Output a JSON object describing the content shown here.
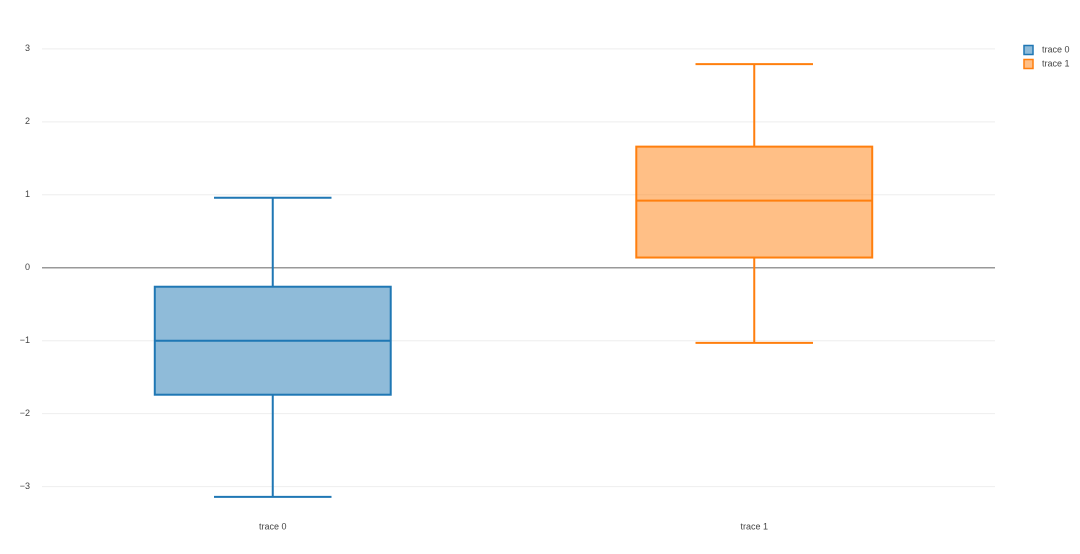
{
  "chart_data": {
    "type": "box",
    "categories": [
      "trace 0",
      "trace 1"
    ],
    "series": [
      {
        "name": "trace 0",
        "color": "#1f77b4",
        "lower": -3.14,
        "q1": -1.74,
        "median": -1.0,
        "q3": -0.26,
        "upper": 0.96
      },
      {
        "name": "trace 1",
        "color": "#ff7f0e",
        "lower": -1.03,
        "q1": 0.14,
        "median": 0.92,
        "q3": 1.66,
        "upper": 2.79
      }
    ],
    "ylim": [
      -3.32,
      3.19
    ],
    "yticks": [
      {
        "value": -3,
        "label": "−3"
      },
      {
        "value": -2,
        "label": "−2"
      },
      {
        "value": -1,
        "label": "−1"
      },
      0,
      1,
      2,
      3
    ],
    "grid": true,
    "zeroline": true,
    "legend": "top-right"
  }
}
